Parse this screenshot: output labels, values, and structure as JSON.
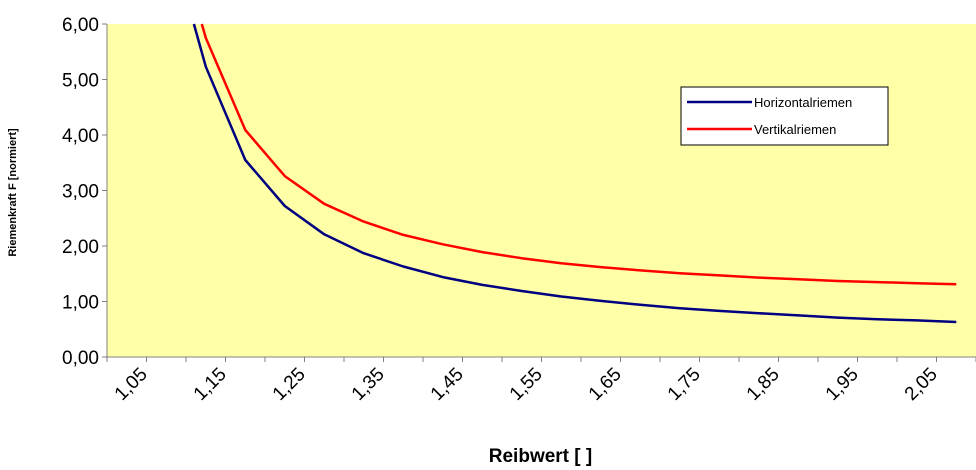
{
  "chart_data": {
    "type": "line",
    "xlabel": "Reibwert [ ]",
    "ylabel": "Riemenkraft F  [normiert]",
    "x_ticks": [
      "1,05",
      "1,15",
      "1,25",
      "1,35",
      "1,45",
      "1,55",
      "1,65",
      "1,75",
      "1,85",
      "1,95",
      "2,05"
    ],
    "y_ticks": [
      "0,00",
      "1,00",
      "2,00",
      "3,00",
      "4,00",
      "5,00",
      "6,00"
    ],
    "xlim": [
      1.0,
      2.1
    ],
    "ylim": [
      0,
      6
    ],
    "grid": false,
    "legend_position": "right",
    "plot_background": "#FFFFA8",
    "series": [
      {
        "name": "Horizontalriemen",
        "color": "#000080",
        "x": [
          1.11,
          1.125,
          1.175,
          1.225,
          1.275,
          1.325,
          1.375,
          1.425,
          1.475,
          1.525,
          1.575,
          1.625,
          1.675,
          1.725,
          1.775,
          1.825,
          1.875,
          1.925,
          1.975,
          2.025,
          2.075
        ],
        "y": [
          6.0,
          5.23,
          3.55,
          2.72,
          2.21,
          1.87,
          1.63,
          1.44,
          1.3,
          1.19,
          1.09,
          1.01,
          0.94,
          0.88,
          0.83,
          0.79,
          0.75,
          0.71,
          0.68,
          0.66,
          0.63
        ]
      },
      {
        "name": "Vertikalriemen",
        "color": "#FF0000",
        "x": [
          1.12,
          1.125,
          1.175,
          1.225,
          1.275,
          1.325,
          1.375,
          1.425,
          1.475,
          1.525,
          1.575,
          1.625,
          1.675,
          1.725,
          1.775,
          1.825,
          1.875,
          1.925,
          1.975,
          2.025,
          2.075
        ],
        "y": [
          6.0,
          5.75,
          4.09,
          3.26,
          2.76,
          2.44,
          2.2,
          2.03,
          1.89,
          1.78,
          1.69,
          1.62,
          1.56,
          1.51,
          1.47,
          1.43,
          1.4,
          1.37,
          1.35,
          1.33,
          1.31
        ]
      }
    ]
  }
}
